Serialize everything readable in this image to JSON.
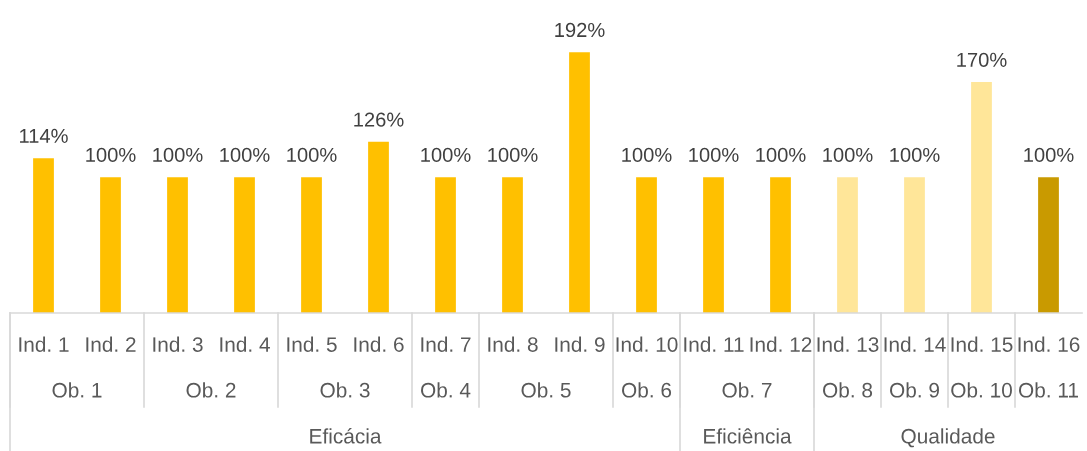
{
  "chart_data": {
    "type": "bar",
    "categories": [
      "Ind. 1",
      "Ind. 2",
      "Ind. 3",
      "Ind. 4",
      "Ind. 5",
      "Ind. 6",
      "Ind. 7",
      "Ind. 8",
      "Ind. 9",
      "Ind. 10",
      "Ind. 11",
      "Ind. 12",
      "Ind. 13",
      "Ind. 14",
      "Ind. 15",
      "Ind. 16"
    ],
    "values": [
      114,
      100,
      100,
      100,
      100,
      126,
      100,
      100,
      192,
      100,
      100,
      100,
      100,
      100,
      170,
      100
    ],
    "colors": [
      "#ffc000",
      "#ffc000",
      "#ffc000",
      "#ffc000",
      "#ffc000",
      "#ffc000",
      "#ffc000",
      "#ffc000",
      "#ffc000",
      "#ffc000",
      "#ffc000",
      "#ffc000",
      "#ffe699",
      "#ffe699",
      "#ffe699",
      "#c99a00"
    ],
    "value_labels": [
      "114%",
      "100%",
      "100%",
      "100%",
      "100%",
      "126%",
      "100%",
      "100%",
      "192%",
      "100%",
      "100%",
      "100%",
      "100%",
      "100%",
      "170%",
      "100%"
    ],
    "annotations": [
      "Ob. 1",
      "Ob. 2",
      "Ob. 3",
      "Ob. 4",
      "Ob. 5",
      "Ob. 6",
      "Ob. 7",
      "Ob. 8",
      "Ob. 9",
      "Ob. 10",
      "Ob. 11",
      "Eficácia",
      "Eficiência",
      "Qualidade"
    ],
    "tick_labels": "x",
    "grid": false,
    "legend": false
  }
}
